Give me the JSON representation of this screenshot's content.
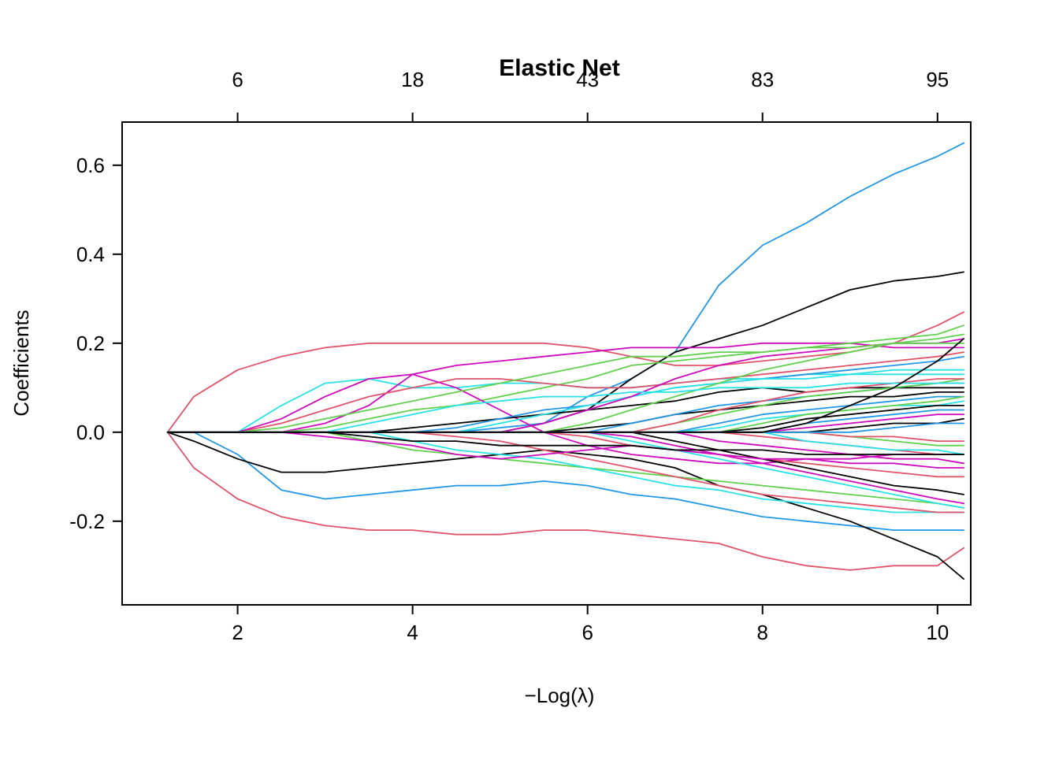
{
  "chart_data": {
    "type": "line",
    "title": "Elastic Net",
    "xlabel": "−Log(λ)",
    "ylabel": "Coefficients",
    "xlim": [
      0.68,
      10.38
    ],
    "ylim": [
      -0.388,
      0.697
    ],
    "x_ticks": [
      2,
      4,
      6,
      8,
      10
    ],
    "y_ticks": [
      0.6,
      0.4,
      0.2,
      0.0,
      -0.2
    ],
    "top_axis": {
      "ticks_at": [
        2,
        4,
        6,
        8,
        10
      ],
      "labels": [
        "6",
        "18",
        "43",
        "83",
        "95"
      ]
    },
    "grid": false,
    "legend": "none",
    "palette": {
      "black": "#000000",
      "rose": "#DF536B",
      "green": "#61D04F",
      "blue": "#2297E6",
      "cyan": "#28E2E5",
      "magenta": "#CD0BBC"
    },
    "x": [
      1.2,
      1.5,
      2,
      2.5,
      3,
      3.5,
      4,
      4.5,
      5,
      5.5,
      6,
      6.5,
      7,
      7.5,
      8,
      8.5,
      9,
      9.5,
      10,
      10.3
    ],
    "series": [
      {
        "color": "#DF536B",
        "y": [
          0,
          0.08,
          0.14,
          0.17,
          0.19,
          0.2,
          0.2,
          0.2,
          0.2,
          0.2,
          0.19,
          0.17,
          0.15,
          0.15,
          0.16,
          0.17,
          0.18,
          0.2,
          0.24,
          0.27
        ]
      },
      {
        "color": "#DF536B",
        "y": [
          0,
          -0.08,
          -0.15,
          -0.19,
          -0.21,
          -0.22,
          -0.22,
          -0.23,
          -0.23,
          -0.22,
          -0.22,
          -0.23,
          -0.24,
          -0.25,
          -0.28,
          -0.3,
          -0.31,
          -0.3,
          -0.3,
          -0.26
        ]
      },
      {
        "color": "#2297E6",
        "y": [
          0,
          0,
          -0.05,
          -0.13,
          -0.15,
          -0.14,
          -0.13,
          -0.12,
          -0.12,
          -0.11,
          -0.12,
          -0.14,
          -0.15,
          -0.17,
          -0.19,
          -0.2,
          -0.21,
          -0.22,
          -0.22,
          -0.22
        ]
      },
      {
        "color": "#000000",
        "y": [
          0,
          -0.02,
          -0.06,
          -0.09,
          -0.09,
          -0.08,
          -0.07,
          -0.06,
          -0.05,
          -0.04,
          -0.05,
          -0.06,
          -0.08,
          -0.12,
          -0.14,
          -0.17,
          -0.2,
          -0.24,
          -0.28,
          -0.33
        ]
      },
      {
        "color": "#2297E6",
        "y": [
          0,
          0,
          0,
          0,
          0,
          0,
          0,
          0,
          0.01,
          0.02,
          0.08,
          0.12,
          0.18,
          0.33,
          0.42,
          0.47,
          0.53,
          0.58,
          0.62,
          0.65
        ]
      },
      {
        "color": "#000000",
        "y": [
          0,
          0,
          0,
          0,
          0,
          0,
          0,
          0,
          0,
          0.02,
          0.05,
          0.12,
          0.18,
          0.21,
          0.24,
          0.28,
          0.32,
          0.34,
          0.35,
          0.36
        ]
      },
      {
        "color": "#28E2E5",
        "y": [
          0,
          0,
          0,
          0.06,
          0.11,
          0.12,
          0.1,
          0.1,
          0.11,
          0.11,
          0.1,
          0.1,
          0.11,
          0.12,
          0.12,
          0.13,
          0.13,
          0.14,
          0.14,
          0.14
        ]
      },
      {
        "color": "#CD0BBC",
        "y": [
          0,
          0,
          0,
          0,
          0.02,
          0.06,
          0.13,
          0.15,
          0.16,
          0.17,
          0.18,
          0.19,
          0.19,
          0.19,
          0.2,
          0.2,
          0.2,
          0.19,
          0.19,
          0.19
        ]
      },
      {
        "color": "#61D04F",
        "y": [
          0,
          0,
          0,
          0,
          0.01,
          0.03,
          0.05,
          0.06,
          0.08,
          0.1,
          0.12,
          0.15,
          0.16,
          0.17,
          0.18,
          0.19,
          0.2,
          0.21,
          0.22,
          0.24
        ]
      },
      {
        "color": "#DF536B",
        "y": [
          0,
          0,
          0,
          0.02,
          0.05,
          0.08,
          0.1,
          0.12,
          0.12,
          0.11,
          0.1,
          0.1,
          0.11,
          0.12,
          0.13,
          0.14,
          0.15,
          0.16,
          0.17,
          0.18
        ]
      },
      {
        "color": "#CD0BBC",
        "y": [
          0,
          0,
          0,
          0.03,
          0.08,
          0.12,
          0.13,
          0.1,
          0.05,
          0,
          -0.03,
          -0.05,
          -0.06,
          -0.07,
          -0.07,
          -0.06,
          -0.06,
          -0.05,
          -0.05,
          -0.05
        ]
      },
      {
        "color": "#61D04F",
        "y": [
          0,
          0,
          0,
          0,
          0,
          -0.02,
          -0.04,
          -0.05,
          -0.06,
          -0.07,
          -0.08,
          -0.09,
          -0.1,
          -0.11,
          -0.12,
          -0.13,
          -0.14,
          -0.15,
          -0.16,
          -0.17
        ]
      },
      {
        "color": "#28E2E5",
        "y": [
          0,
          0,
          0,
          0,
          0,
          0,
          -0.02,
          -0.04,
          -0.05,
          -0.06,
          -0.08,
          -0.1,
          -0.12,
          -0.13,
          -0.15,
          -0.16,
          -0.17,
          -0.18,
          -0.18,
          -0.18
        ]
      },
      {
        "color": "#000000",
        "y": [
          0,
          0,
          0,
          0,
          0,
          0,
          0.01,
          0.02,
          0.03,
          0.04,
          0.05,
          0.06,
          0.07,
          0.09,
          0.1,
          0.09,
          0.1,
          0.1,
          0.1,
          0.1
        ]
      },
      {
        "color": "#DF536B",
        "y": [
          0,
          0,
          0,
          0,
          0,
          0,
          0,
          -0.01,
          -0.02,
          -0.04,
          -0.06,
          -0.08,
          -0.1,
          -0.12,
          -0.14,
          -0.15,
          -0.16,
          -0.17,
          -0.18,
          -0.18
        ]
      },
      {
        "color": "#2297E6",
        "y": [
          0,
          0,
          0,
          0,
          0,
          0,
          0,
          0.01,
          0.03,
          0.05,
          0.06,
          0.08,
          0.1,
          0.11,
          0.12,
          0.13,
          0.14,
          0.15,
          0.16,
          0.17
        ]
      },
      {
        "color": "#28E2E5",
        "y": [
          0,
          0,
          0,
          0,
          0,
          0,
          0,
          0,
          0.02,
          0.04,
          0.06,
          0.08,
          0.1,
          0.11,
          0.12,
          0.12,
          0.13,
          0.13,
          0.13,
          0.13
        ]
      },
      {
        "color": "#CD0BBC",
        "y": [
          0,
          0,
          0,
          0,
          0,
          0,
          0,
          0,
          0,
          0.02,
          0.05,
          0.08,
          0.12,
          0.15,
          0.17,
          0.18,
          0.19,
          0.2,
          0.2,
          0.21
        ]
      },
      {
        "color": "#61D04F",
        "y": [
          0,
          0,
          0,
          0,
          0,
          0,
          0,
          0,
          0,
          0,
          0.02,
          0.05,
          0.08,
          0.11,
          0.14,
          0.16,
          0.18,
          0.2,
          0.21,
          0.22
        ]
      },
      {
        "color": "#000000",
        "y": [
          0,
          0,
          0,
          0,
          0,
          0,
          0,
          0,
          0,
          0,
          0.01,
          0.02,
          0.04,
          0.05,
          0.06,
          0.07,
          0.08,
          0.08,
          0.09,
          0.09
        ]
      },
      {
        "color": "#DF536B",
        "y": [
          0,
          0,
          0,
          0,
          0,
          0,
          0,
          0,
          0,
          0,
          -0.01,
          -0.03,
          -0.04,
          -0.05,
          -0.06,
          -0.07,
          -0.08,
          -0.09,
          -0.1,
          -0.1
        ]
      },
      {
        "color": "#2297E6",
        "y": [
          0,
          0,
          0,
          0,
          0,
          0,
          0,
          0,
          0,
          0,
          0,
          0.02,
          0.04,
          0.06,
          0.07,
          0.08,
          0.09,
          0.1,
          0.11,
          0.11
        ]
      },
      {
        "color": "#28E2E5",
        "y": [
          0,
          0,
          0,
          0,
          0,
          0,
          0,
          0,
          0,
          0,
          0,
          -0.02,
          -0.04,
          -0.06,
          -0.08,
          -0.1,
          -0.12,
          -0.14,
          -0.16,
          -0.17
        ]
      },
      {
        "color": "#CD0BBC",
        "y": [
          0,
          0,
          0,
          0,
          0,
          0,
          0,
          0,
          0,
          0,
          0,
          -0.01,
          -0.03,
          -0.05,
          -0.07,
          -0.09,
          -0.11,
          -0.13,
          -0.15,
          -0.16
        ]
      },
      {
        "color": "#61D04F",
        "y": [
          0,
          0,
          0,
          0,
          0,
          0,
          0,
          0,
          0,
          0,
          0,
          0,
          0.02,
          0.04,
          0.06,
          0.08,
          0.09,
          0.1,
          0.11,
          0.12
        ]
      },
      {
        "color": "#000000",
        "y": [
          0,
          0,
          0,
          0,
          0,
          0,
          0,
          0,
          0,
          0,
          0,
          0,
          -0.02,
          -0.04,
          -0.06,
          -0.08,
          -0.1,
          -0.12,
          -0.13,
          -0.14
        ]
      },
      {
        "color": "#DF536B",
        "y": [
          0,
          0,
          0,
          0,
          0,
          0,
          0,
          0,
          0,
          0,
          0,
          0,
          0.02,
          0.05,
          0.07,
          0.09,
          0.1,
          0.11,
          0.12,
          0.12
        ]
      },
      {
        "color": "#2297E6",
        "y": [
          0,
          0,
          0,
          0,
          0,
          0,
          0,
          0,
          0,
          0,
          0,
          0,
          0,
          0.02,
          0.04,
          0.05,
          0.06,
          0.07,
          0.08,
          0.08
        ]
      },
      {
        "color": "#28E2E5",
        "y": [
          0,
          0,
          0,
          0,
          0,
          0,
          0,
          0,
          0,
          0,
          0,
          0,
          0,
          0.01,
          0.03,
          0.04,
          0.05,
          0.06,
          0.06,
          0.07
        ]
      },
      {
        "color": "#CD0BBC",
        "y": [
          0,
          0,
          0,
          0,
          0,
          0,
          0,
          0,
          0,
          0,
          0,
          0,
          0,
          -0.02,
          -0.03,
          -0.04,
          -0.05,
          -0.06,
          -0.06,
          -0.07
        ]
      },
      {
        "color": "#61D04F",
        "y": [
          0,
          0,
          0,
          0,
          0,
          0,
          0,
          0,
          0,
          0,
          0,
          0,
          0,
          0,
          0.02,
          0.04,
          0.05,
          0.06,
          0.07,
          0.08
        ]
      },
      {
        "color": "#000000",
        "y": [
          0,
          0,
          0,
          0,
          0,
          0,
          0,
          0,
          0,
          0,
          0,
          0,
          0,
          0,
          0.01,
          0.03,
          0.04,
          0.05,
          0.06,
          0.06
        ]
      },
      {
        "color": "#DF536B",
        "y": [
          0,
          0,
          0,
          0,
          0,
          0,
          0,
          0,
          0,
          0,
          0,
          0,
          0,
          0,
          -0.01,
          -0.02,
          -0.03,
          -0.04,
          -0.05,
          -0.05
        ]
      },
      {
        "color": "#2297E6",
        "y": [
          0,
          0,
          0,
          0,
          0,
          0,
          0,
          0,
          0,
          0,
          0,
          0,
          0,
          0,
          0,
          0.02,
          0.03,
          0.04,
          0.05,
          0.05
        ]
      },
      {
        "color": "#28E2E5",
        "y": [
          0,
          0,
          0,
          0,
          0,
          0,
          0,
          0,
          0,
          0,
          0,
          0,
          0,
          0,
          0,
          -0.02,
          -0.03,
          -0.04,
          -0.04,
          -0.05
        ]
      },
      {
        "color": "#CD0BBC",
        "y": [
          0,
          0,
          0,
          0,
          0,
          0,
          0,
          0,
          0,
          0,
          0,
          0,
          0,
          0,
          0,
          0.01,
          0.02,
          0.03,
          0.04,
          0.04
        ]
      },
      {
        "color": "#61D04F",
        "y": [
          0,
          0,
          0,
          0,
          0,
          0,
          0,
          0,
          0,
          0,
          0,
          0,
          0,
          0,
          0,
          0,
          -0.01,
          -0.02,
          -0.03,
          -0.03
        ]
      },
      {
        "color": "#000000",
        "y": [
          0,
          0,
          0,
          0,
          0,
          0,
          0,
          0,
          0,
          0,
          0,
          0,
          0,
          0,
          0,
          0,
          0.01,
          0.02,
          0.02,
          0.03
        ]
      },
      {
        "color": "#DF536B",
        "y": [
          0,
          0,
          0,
          0,
          0,
          0,
          0,
          0,
          0,
          0,
          0,
          0,
          0,
          0,
          0,
          0,
          -0.01,
          -0.01,
          -0.02,
          -0.02
        ]
      },
      {
        "color": "#2297E6",
        "y": [
          0,
          0,
          0,
          0,
          0,
          0,
          0,
          0,
          0,
          0,
          0,
          0,
          0,
          0,
          0,
          0,
          0,
          0.01,
          0.02,
          0.02
        ]
      },
      {
        "color": "#61D04F",
        "y": [
          0,
          0,
          0,
          0.01,
          0.03,
          0.05,
          0.07,
          0.09,
          0.11,
          0.13,
          0.15,
          0.17,
          0.17,
          0.18,
          0.18,
          0.19,
          0.19,
          0.2,
          0.2,
          0.2
        ]
      },
      {
        "color": "#CD0BBC",
        "y": [
          0,
          0,
          0,
          0,
          -0.01,
          -0.02,
          -0.03,
          -0.05,
          -0.06,
          -0.05,
          -0.04,
          -0.03,
          -0.04,
          -0.05,
          -0.06,
          -0.06,
          -0.07,
          -0.07,
          -0.08,
          -0.08
        ]
      },
      {
        "color": "#28E2E5",
        "y": [
          0,
          0,
          0,
          0,
          0,
          0.02,
          0.04,
          0.06,
          0.07,
          0.08,
          0.08,
          0.09,
          0.09,
          0.1,
          0.1,
          0.1,
          0.11,
          0.11,
          0.11,
          0.11
        ]
      },
      {
        "color": "#000000",
        "y": [
          0,
          0,
          0,
          0,
          0,
          -0.01,
          -0.02,
          -0.02,
          -0.03,
          -0.03,
          -0.03,
          -0.03,
          -0.04,
          -0.04,
          -0.04,
          -0.05,
          -0.05,
          -0.05,
          -0.05,
          -0.05
        ]
      },
      {
        "color": "#000000",
        "y": [
          0,
          0,
          0,
          0,
          0,
          0,
          0,
          0,
          0,
          0,
          0,
          0,
          0,
          0,
          0,
          0.02,
          0.06,
          0.1,
          0.16,
          0.21
        ]
      }
    ]
  }
}
